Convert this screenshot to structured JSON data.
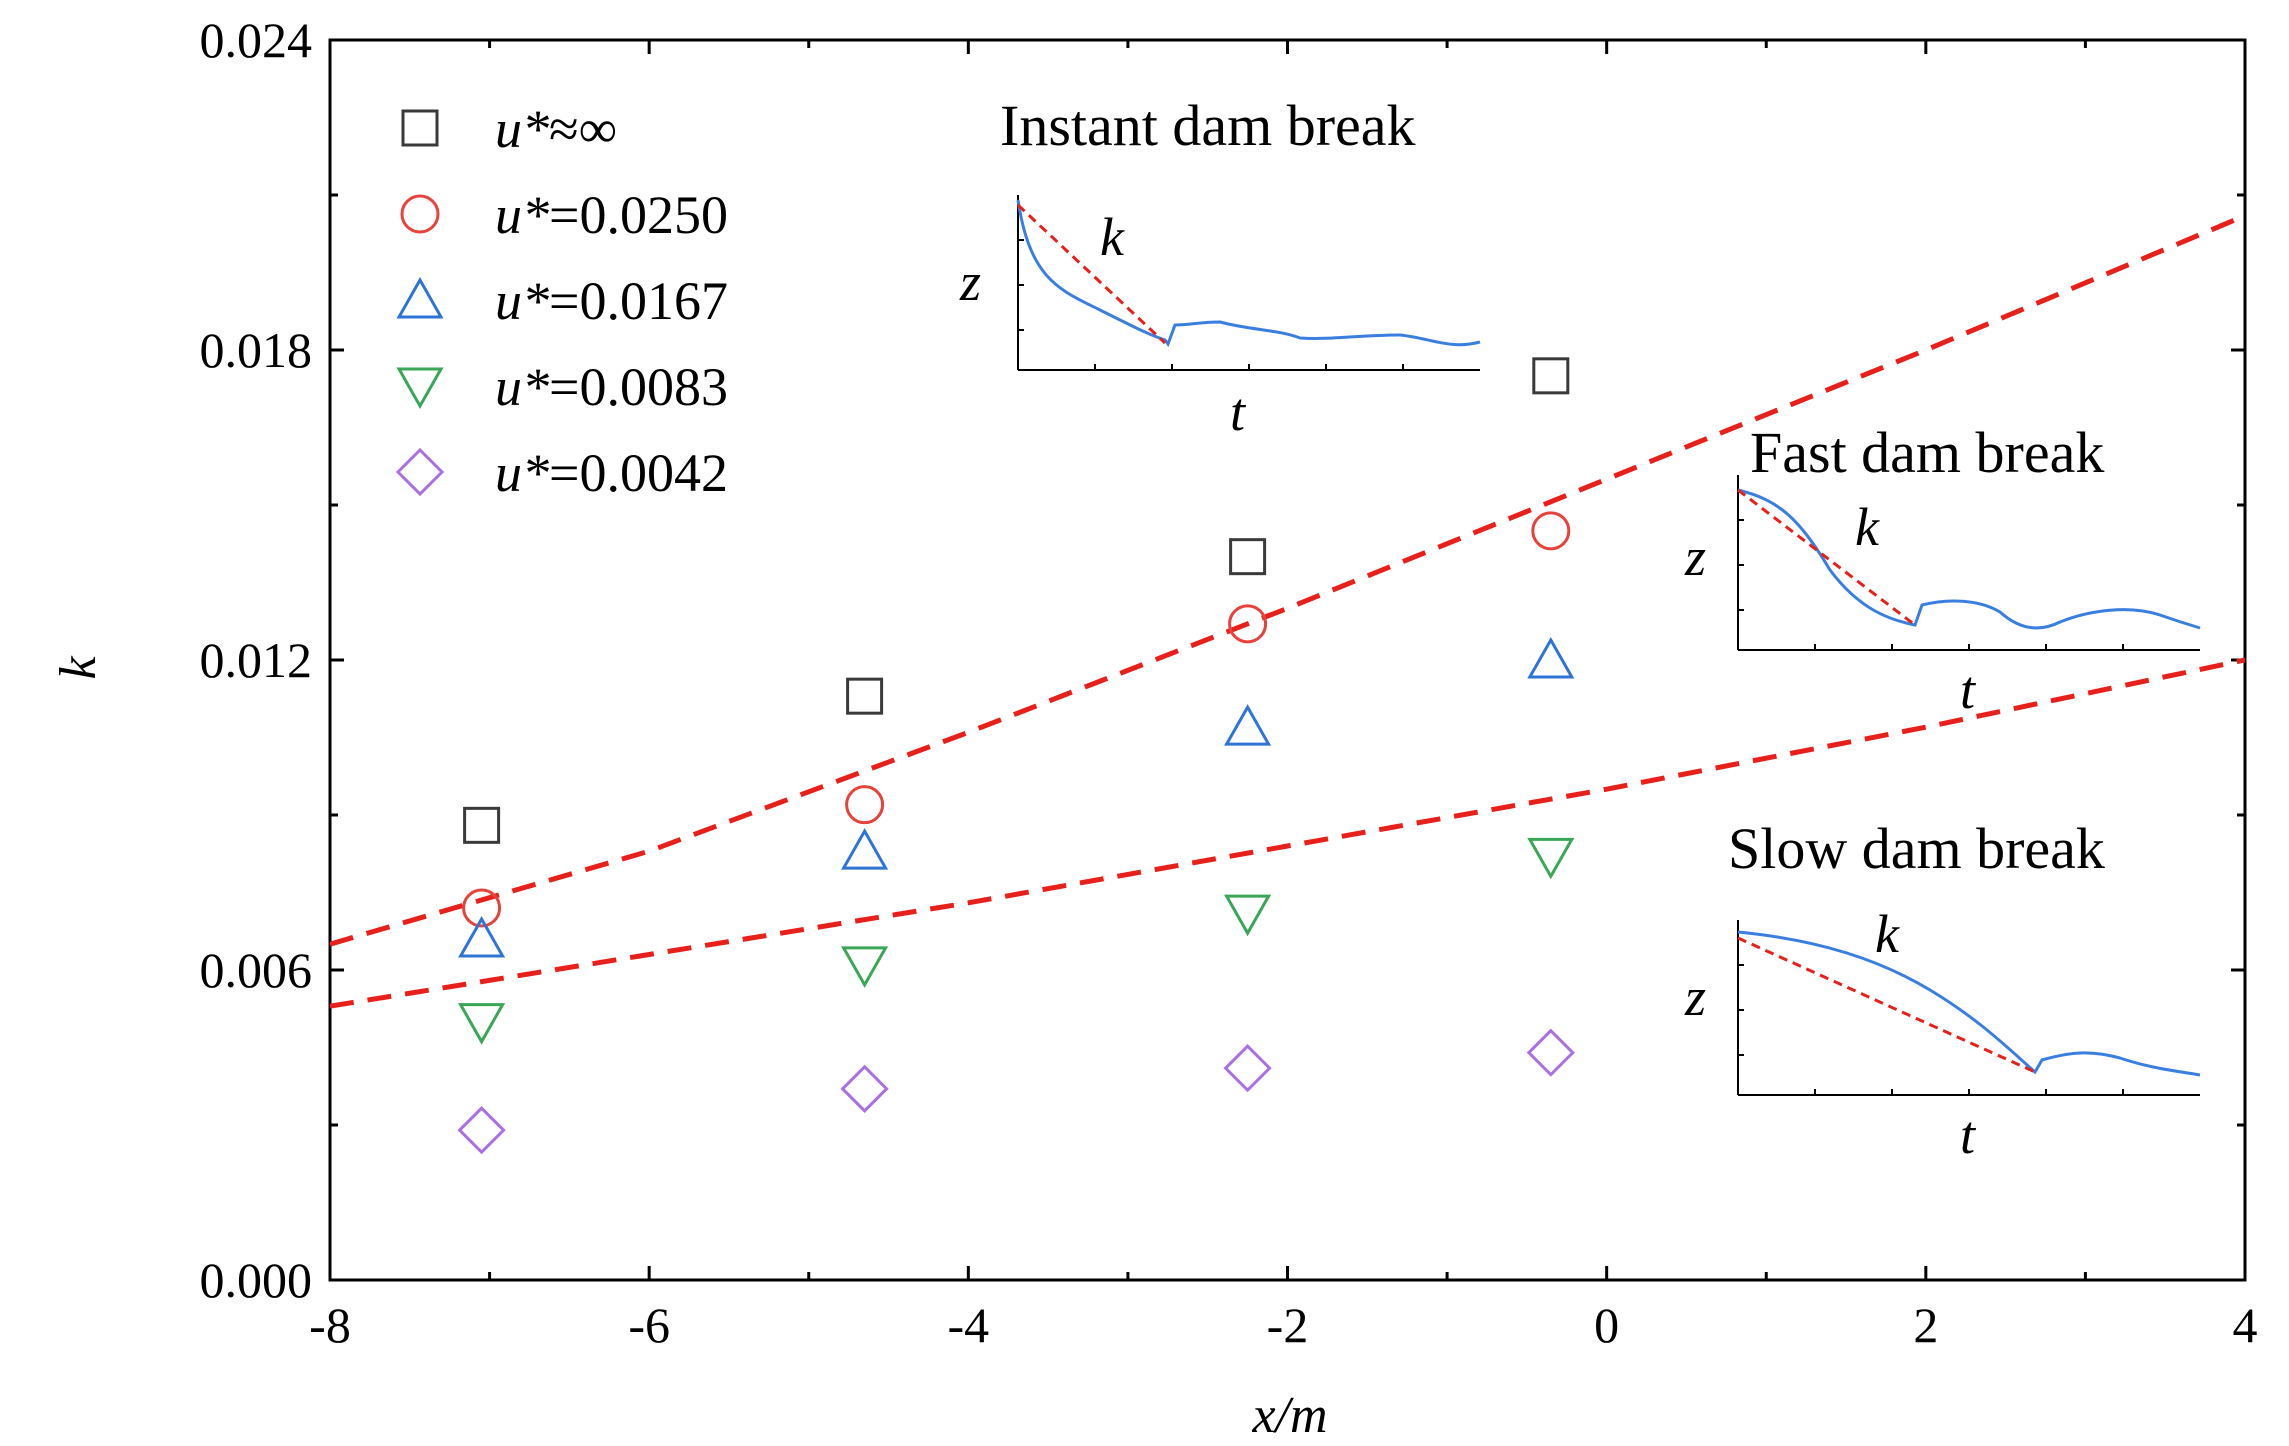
{
  "chart_data": {
    "type": "scatter",
    "title": "",
    "xlabel": "x/m",
    "ylabel": "k",
    "xlim": [
      -8,
      4
    ],
    "ylim": [
      0,
      0.024
    ],
    "xticks": [
      -8,
      -6,
      -4,
      -2,
      0,
      2,
      4
    ],
    "yticks": [
      0.0,
      0.006,
      0.012,
      0.018,
      0.024
    ],
    "xtick_labels": [
      "-8",
      "-6",
      "-4",
      "-2",
      "0",
      "2",
      "4"
    ],
    "ytick_labels": [
      "0.000",
      "0.006",
      "0.012",
      "0.018",
      "0.024"
    ],
    "grid": false,
    "legend_position": "top-left",
    "x": [
      -7.05,
      -4.65,
      -2.25,
      -0.35
    ],
    "series": [
      {
        "name": "u*≈∞",
        "label_prefix": "u*",
        "label_suffix": "≈∞",
        "marker": "square",
        "color": "#3a3a3a",
        "values": [
          0.0088,
          0.0113,
          0.014,
          0.0175
        ]
      },
      {
        "name": "u*=0.0250",
        "label_prefix": "u*",
        "label_suffix": "=0.0250",
        "marker": "circle",
        "color": "#e8423c",
        "values": [
          0.0072,
          0.0092,
          0.0127,
          0.0145
        ]
      },
      {
        "name": "u*=0.0167",
        "label_prefix": "u*",
        "label_suffix": "=0.0167",
        "marker": "triangle-up",
        "color": "#2e74d6",
        "values": [
          0.0066,
          0.0083,
          0.0107,
          0.012
        ]
      },
      {
        "name": "u*=0.0083",
        "label_prefix": "u*",
        "label_suffix": "=0.0083",
        "marker": "triangle-down",
        "color": "#3aa657",
        "values": [
          0.005,
          0.0061,
          0.0071,
          0.0082
        ]
      },
      {
        "name": "u*=0.0042",
        "label_prefix": "u*",
        "label_suffix": "=0.0042",
        "marker": "diamond",
        "color": "#a970e0",
        "values": [
          0.0029,
          0.0037,
          0.0041,
          0.0044
        ]
      }
    ],
    "fit_lines": [
      {
        "name": "upper-boundary",
        "style": "dashed",
        "color": "#e8201c",
        "x": [
          -8,
          -6,
          -4,
          -2,
          0,
          2,
          4
        ],
        "y": [
          0.0065,
          0.0083,
          0.0106,
          0.013,
          0.0155,
          0.018,
          0.0206
        ]
      },
      {
        "name": "lower-boundary",
        "style": "dashed",
        "color": "#e8201c",
        "x": [
          -8,
          -6,
          -4,
          -2,
          0,
          2,
          4
        ],
        "y": [
          0.0053,
          0.0063,
          0.0073,
          0.0084,
          0.0095,
          0.0107,
          0.012
        ]
      }
    ],
    "insets": [
      {
        "title": "Instant dam break",
        "slope_label": "k",
        "x_label": "t",
        "y_label": "z"
      },
      {
        "title": "Fast dam break",
        "slope_label": "k",
        "x_label": "t",
        "y_label": "z"
      },
      {
        "title": "Slow dam break",
        "slope_label": "k",
        "x_label": "t",
        "y_label": "z"
      }
    ]
  },
  "colors": {
    "axis": "#000000",
    "fit": "#e8201c",
    "inset_curve": "#3a7fe0"
  }
}
